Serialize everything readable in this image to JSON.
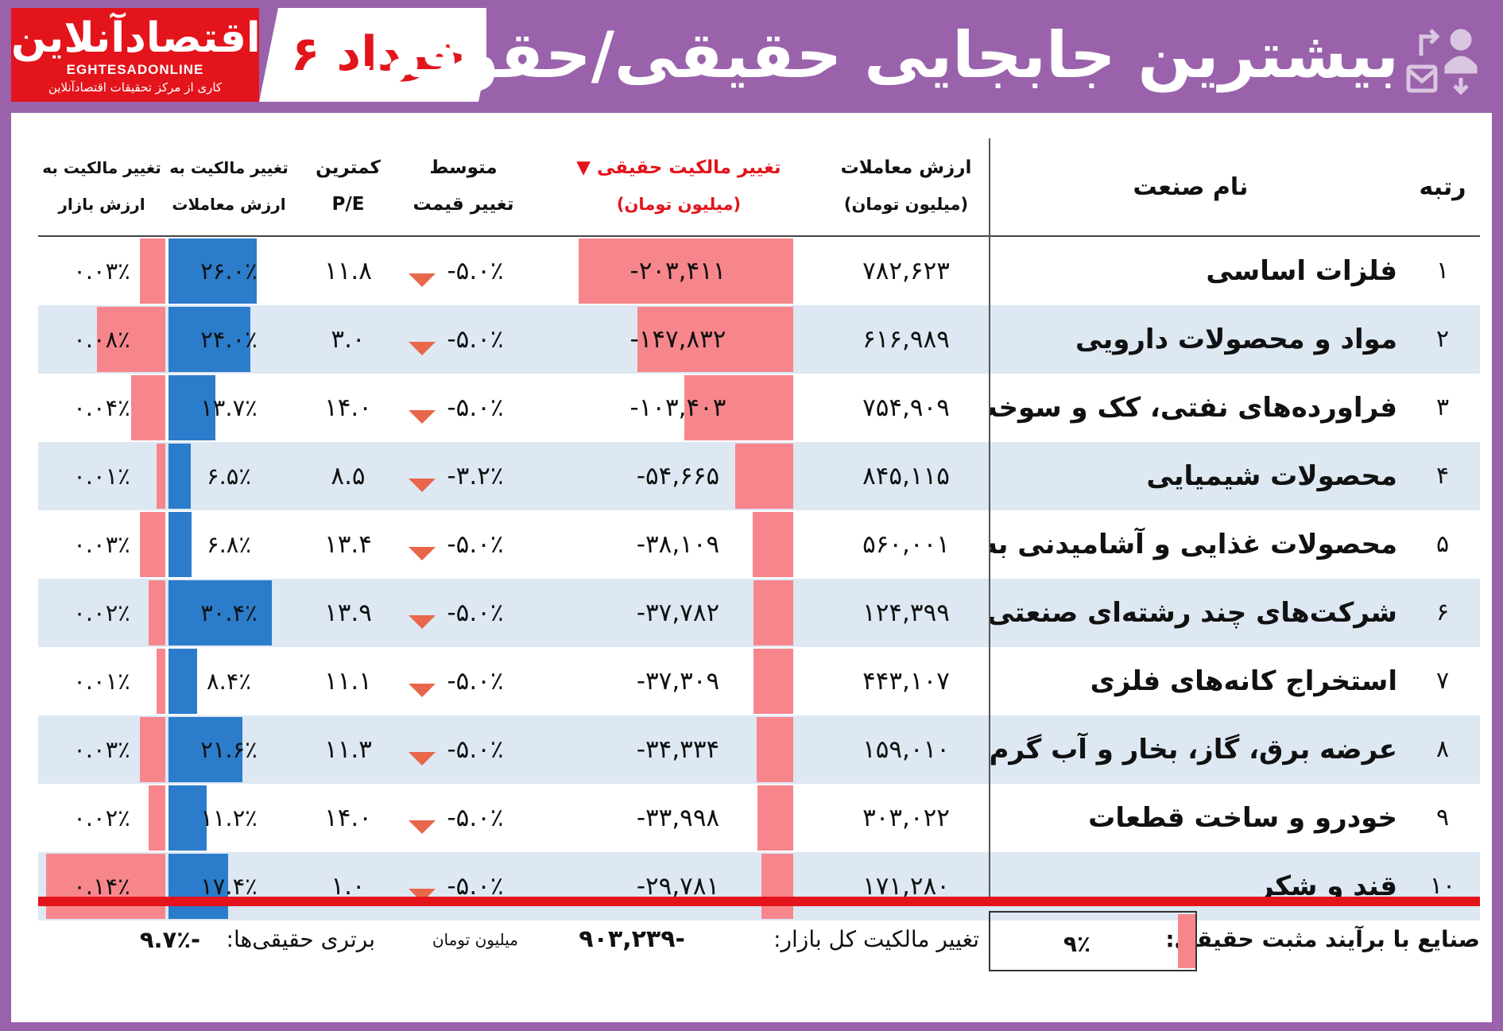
{
  "header": {
    "title": "بیشترین جابجایی حقیقی/حقوقی",
    "date": "۶ خرداد",
    "logo_fa": "اقتصادآنلاین",
    "logo_en": "EGHTESADONLINE",
    "logo_tagline": "کاری از مرکز تحقیقات اقتصادآنلاین"
  },
  "colors": {
    "frame": "#9a62ab",
    "accent_red": "#e3141b",
    "bar_pink": "#f7868c",
    "bar_blue": "#2b7ccb",
    "row_alt": "#dde8f3",
    "arrow": "#e8674b"
  },
  "columns": {
    "rank": "رتبه",
    "industry": "نام صنعت",
    "value_1": "ارزش معاملات",
    "value_2": "(میلیون تومان)",
    "real_change_1": "تغییر مالکیت حقیقی ▼",
    "real_change_2": "(میلیون تومان)",
    "price_1": "متوسط",
    "price_2": "تغییر قیمت",
    "pe_1": "کمترین",
    "pe_2": "P/E",
    "to_value_1": "تغییر مالکیت به",
    "to_value_2": "ارزش معاملات",
    "to_market_1": "تغییر مالکیت به",
    "to_market_2": "ارزش بازار"
  },
  "rows": [
    {
      "rank": "۱",
      "industry": "فلزات اساسی",
      "value": "۷۸۲,۶۲۳",
      "real_change": "-۲۰۳,۴۱۱",
      "real_change_num": 203411,
      "price_change": "-۵.۰٪",
      "pe": "۱۱.۸",
      "to_value": "۲۶.۰٪",
      "to_value_num": 26.0,
      "to_market": "۰.۰۳٪",
      "to_market_num": 0.03
    },
    {
      "rank": "۲",
      "industry": "مواد و محصولات دارویی",
      "value": "۶۱۶,۹۸۹",
      "real_change": "-۱۴۷,۸۳۲",
      "real_change_num": 147832,
      "price_change": "-۵.۰٪",
      "pe": "۳.۰",
      "to_value": "۲۴.۰٪",
      "to_value_num": 24.0,
      "to_market": "۰.۰۸٪",
      "to_market_num": 0.08
    },
    {
      "rank": "۳",
      "industry": "فراورده‌های نفتی، کک و سوخت هسته‌ای",
      "value": "۷۵۴,۹۰۹",
      "real_change": "-۱۰۳,۴۰۳",
      "real_change_num": 103403,
      "price_change": "-۵.۰٪",
      "pe": "۱۴.۰",
      "to_value": "۱۳.۷٪",
      "to_value_num": 13.7,
      "to_market": "۰.۰۴٪",
      "to_market_num": 0.04
    },
    {
      "rank": "۴",
      "industry": "محصولات شیمیایی",
      "value": "۸۴۵,۱۱۵",
      "real_change": "-۵۴,۶۶۵",
      "real_change_num": 54665,
      "price_change": "-۳.۲٪",
      "pe": "۸.۵",
      "to_value": "۶.۵٪",
      "to_value_num": 6.5,
      "to_market": "۰.۰۱٪",
      "to_market_num": 0.01
    },
    {
      "rank": "۵",
      "industry": "محصولات غذایی و آشامیدنی به‌جز قند و شکر",
      "value": "۵۶۰,۰۰۱",
      "real_change": "-۳۸,۱۰۹",
      "real_change_num": 38109,
      "price_change": "-۵.۰٪",
      "pe": "۱۳.۴",
      "to_value": "۶.۸٪",
      "to_value_num": 6.8,
      "to_market": "۰.۰۳٪",
      "to_market_num": 0.03
    },
    {
      "rank": "۶",
      "industry": "شرکت‌های چند رشته‌ای صنعتی",
      "value": "۱۲۴,۳۹۹",
      "real_change": "-۳۷,۷۸۲",
      "real_change_num": 37782,
      "price_change": "-۵.۰٪",
      "pe": "۱۳.۹",
      "to_value": "۳۰.۴٪",
      "to_value_num": 30.4,
      "to_market": "۰.۰۲٪",
      "to_market_num": 0.02
    },
    {
      "rank": "۷",
      "industry": "استخراج کانه‌های فلزی",
      "value": "۴۴۳,۱۰۷",
      "real_change": "-۳۷,۳۰۹",
      "real_change_num": 37309,
      "price_change": "-۵.۰٪",
      "pe": "۱۱.۱",
      "to_value": "۸.۴٪",
      "to_value_num": 8.4,
      "to_market": "۰.۰۱٪",
      "to_market_num": 0.01
    },
    {
      "rank": "۸",
      "industry": "عرضه برق، گاز، بخار و آب گرم",
      "value": "۱۵۹,۰۱۰",
      "real_change": "-۳۴,۳۳۴",
      "real_change_num": 34334,
      "price_change": "-۵.۰٪",
      "pe": "۱۱.۳",
      "to_value": "۲۱.۶٪",
      "to_value_num": 21.6,
      "to_market": "۰.۰۳٪",
      "to_market_num": 0.03
    },
    {
      "rank": "۹",
      "industry": "خودرو و ساخت قطعات",
      "value": "۳۰۳,۰۲۲",
      "real_change": "-۳۳,۹۹۸",
      "real_change_num": 33998,
      "price_change": "-۵.۰٪",
      "pe": "۱۴.۰",
      "to_value": "۱۱.۲٪",
      "to_value_num": 11.2,
      "to_market": "۰.۰۲٪",
      "to_market_num": 0.02
    },
    {
      "rank": "۱۰",
      "industry": "قند و شکر",
      "value": "۱۷۱,۲۸۰",
      "real_change": "-۲۹,۷۸۱",
      "real_change_num": 29781,
      "price_change": "-۵.۰٪",
      "pe": "۱.۰",
      "to_value": "۱۷.۴٪",
      "to_value_num": 17.4,
      "to_market": "۰.۱۴٪",
      "to_market_num": 0.14
    }
  ],
  "footer": {
    "positive_label": "صنایع با برآیند مثبت حقیقی:",
    "positive_value": "۹٪",
    "total_label": "تغییر مالکیت کل بازار:",
    "total_value": "-۹۰۳,۲۳۹",
    "total_unit": "میلیون تومان",
    "dominance_label": "برتری حقیقی‌ها:",
    "dominance_value": "-۹.۷٪"
  }
}
